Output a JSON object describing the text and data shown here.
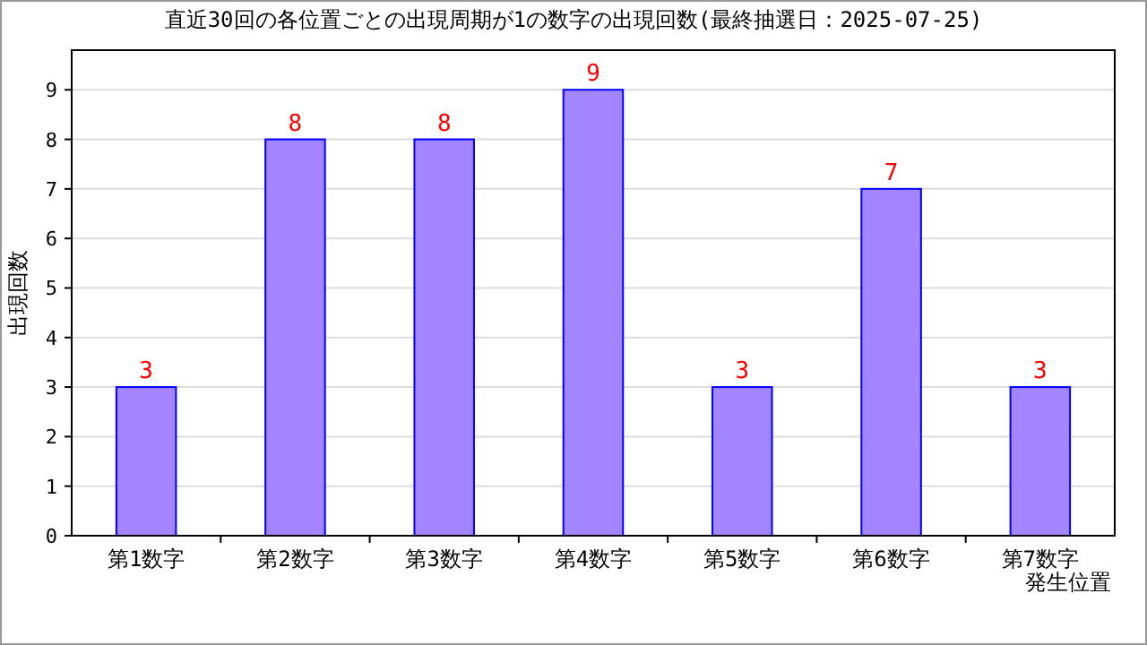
{
  "chart_data": {
    "type": "bar",
    "title": "直近30回の各位置ごとの出現周期が1の数字の出現回数(最終抽選日：2025-07-25)",
    "xlabel": "発生位置",
    "ylabel": "出現回数",
    "categories": [
      "第1数字",
      "第2数字",
      "第3数字",
      "第4数字",
      "第5数字",
      "第6数字",
      "第7数字"
    ],
    "values": [
      3,
      8,
      8,
      9,
      3,
      7,
      3
    ],
    "color": "#a385ff",
    "ylim": [
      0,
      9.8
    ],
    "yticks": [
      0,
      1,
      2,
      3,
      4,
      5,
      6,
      7,
      8,
      9
    ],
    "grid": "y",
    "data_labels": true
  }
}
